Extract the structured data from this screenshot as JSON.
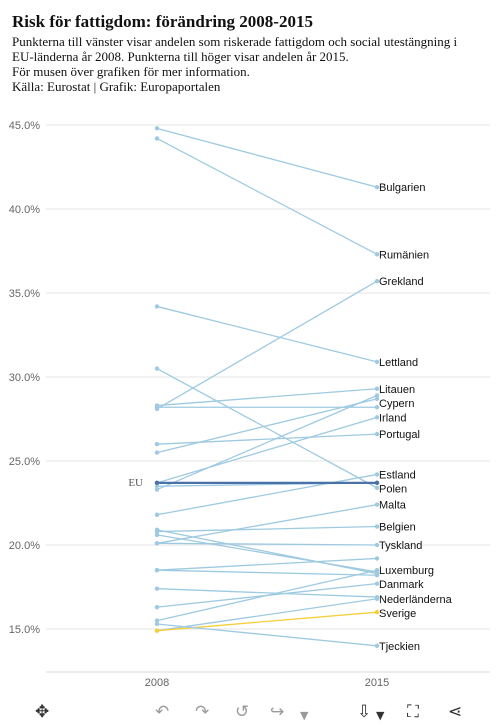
{
  "header": {
    "title": "Risk för fattigdom: förändring 2008-2015",
    "line1": "Punkterna till vänster visar andelen som riskerade fattigdom och social utestängning i",
    "line2": "EU-länderna år 2008. Punkterna till höger visar andelen år 2015.",
    "line3": "För musen över grafiken för mer information.",
    "line4": "Källa: Eurostat | Grafik: Europaportalen"
  },
  "colors": {
    "line": "#9ecae1",
    "eu": "#4a72a8",
    "sweden": "#f5cf3a",
    "grid": "#e6e6e6",
    "axis_text": "#666666"
  },
  "chart_data": {
    "type": "line",
    "x": [
      "2008",
      "2015"
    ],
    "ylim": [
      12.5,
      47.5
    ],
    "yticks": [
      "45.0%",
      "40.0%",
      "35.0%",
      "30.0%",
      "25.0%",
      "20.0%",
      "15.0%"
    ],
    "ytick_values": [
      45,
      40,
      35,
      30,
      25,
      20,
      15
    ],
    "grid": true,
    "labeled": [
      {
        "name": "Bulgarien",
        "values": [
          44.8,
          41.3
        ]
      },
      {
        "name": "Rumänien",
        "values": [
          44.2,
          37.3
        ]
      },
      {
        "name": "Grekland",
        "values": [
          28.1,
          35.7
        ]
      },
      {
        "name": "Lettland",
        "values": [
          34.2,
          30.9
        ]
      },
      {
        "name": "Litauen",
        "values": [
          28.3,
          29.3
        ]
      },
      {
        "name": "Cypern",
        "values": [
          23.3,
          28.9
        ]
      },
      {
        "name": "Irland",
        "values": [
          23.7,
          27.6
        ]
      },
      {
        "name": "Portugal",
        "values": [
          26.0,
          26.6
        ]
      },
      {
        "name": "Estland",
        "values": [
          21.8,
          24.2
        ]
      },
      {
        "name": "Polen",
        "values": [
          30.5,
          23.4
        ]
      },
      {
        "name": "Malta",
        "values": [
          20.1,
          22.4
        ]
      },
      {
        "name": "Belgien",
        "values": [
          20.8,
          21.1
        ]
      },
      {
        "name": "Tyskland",
        "values": [
          20.1,
          20.0
        ]
      },
      {
        "name": "Luxemburg",
        "values": [
          15.5,
          18.5
        ]
      },
      {
        "name": "Danmark",
        "values": [
          16.3,
          17.7
        ]
      },
      {
        "name": "Nederländerna",
        "values": [
          14.9,
          16.8
        ]
      },
      {
        "name": "Sverige",
        "values": [
          14.9,
          16.0
        ]
      },
      {
        "name": "Tjeckien",
        "values": [
          15.3,
          14.0
        ]
      }
    ],
    "unlabeled": [
      {
        "values": [
          28.2,
          28.2
        ]
      },
      {
        "values": [
          25.5,
          28.7
        ]
      },
      {
        "values": [
          23.5,
          23.7
        ]
      },
      {
        "values": [
          20.6,
          18.4
        ]
      },
      {
        "values": [
          20.9,
          18.3
        ]
      },
      {
        "values": [
          18.5,
          19.2
        ]
      },
      {
        "values": [
          18.5,
          18.2
        ]
      },
      {
        "values": [
          17.4,
          16.9
        ]
      }
    ],
    "eu": {
      "name": "EU",
      "values": [
        23.7,
        23.7
      ]
    }
  },
  "toolbar": {
    "icons": [
      "move-icon",
      "undo-icon",
      "redo-icon",
      "revert-icon",
      "forward-icon",
      "dropdown-arrow-icon",
      "download-icon",
      "dropdown-arrow-icon",
      "fullscreen-icon",
      "share-icon"
    ]
  }
}
